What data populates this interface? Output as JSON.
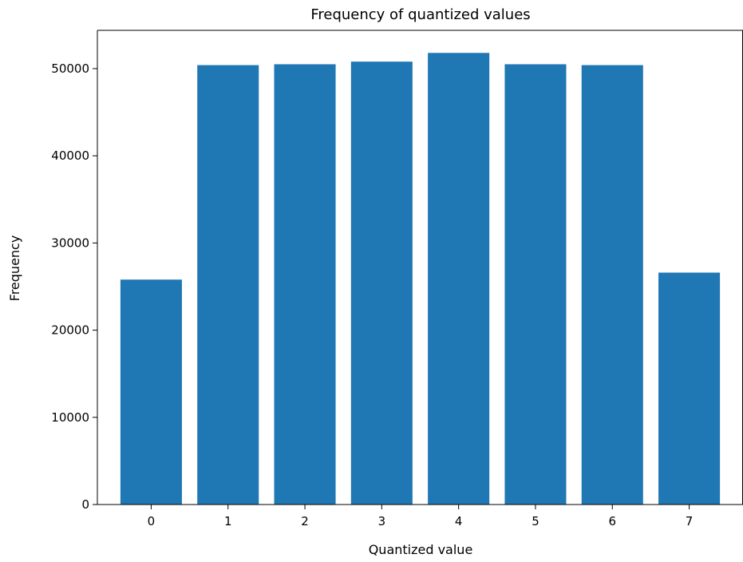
{
  "chart_data": {
    "type": "bar",
    "title": "Frequency of quantized values",
    "xlabel": "Quantized value",
    "ylabel": "Frequency",
    "categories": [
      "0",
      "1",
      "2",
      "3",
      "4",
      "5",
      "6",
      "7"
    ],
    "values": [
      25800,
      50400,
      50500,
      50800,
      51800,
      50500,
      50400,
      26600
    ],
    "ylim": [
      0,
      54390
    ],
    "yticks": [
      0,
      10000,
      20000,
      30000,
      40000,
      50000
    ],
    "ytick_labels": [
      "0",
      "10000",
      "20000",
      "30000",
      "40000",
      "50000"
    ],
    "grid": false,
    "bar_color": "#1f77b4"
  }
}
